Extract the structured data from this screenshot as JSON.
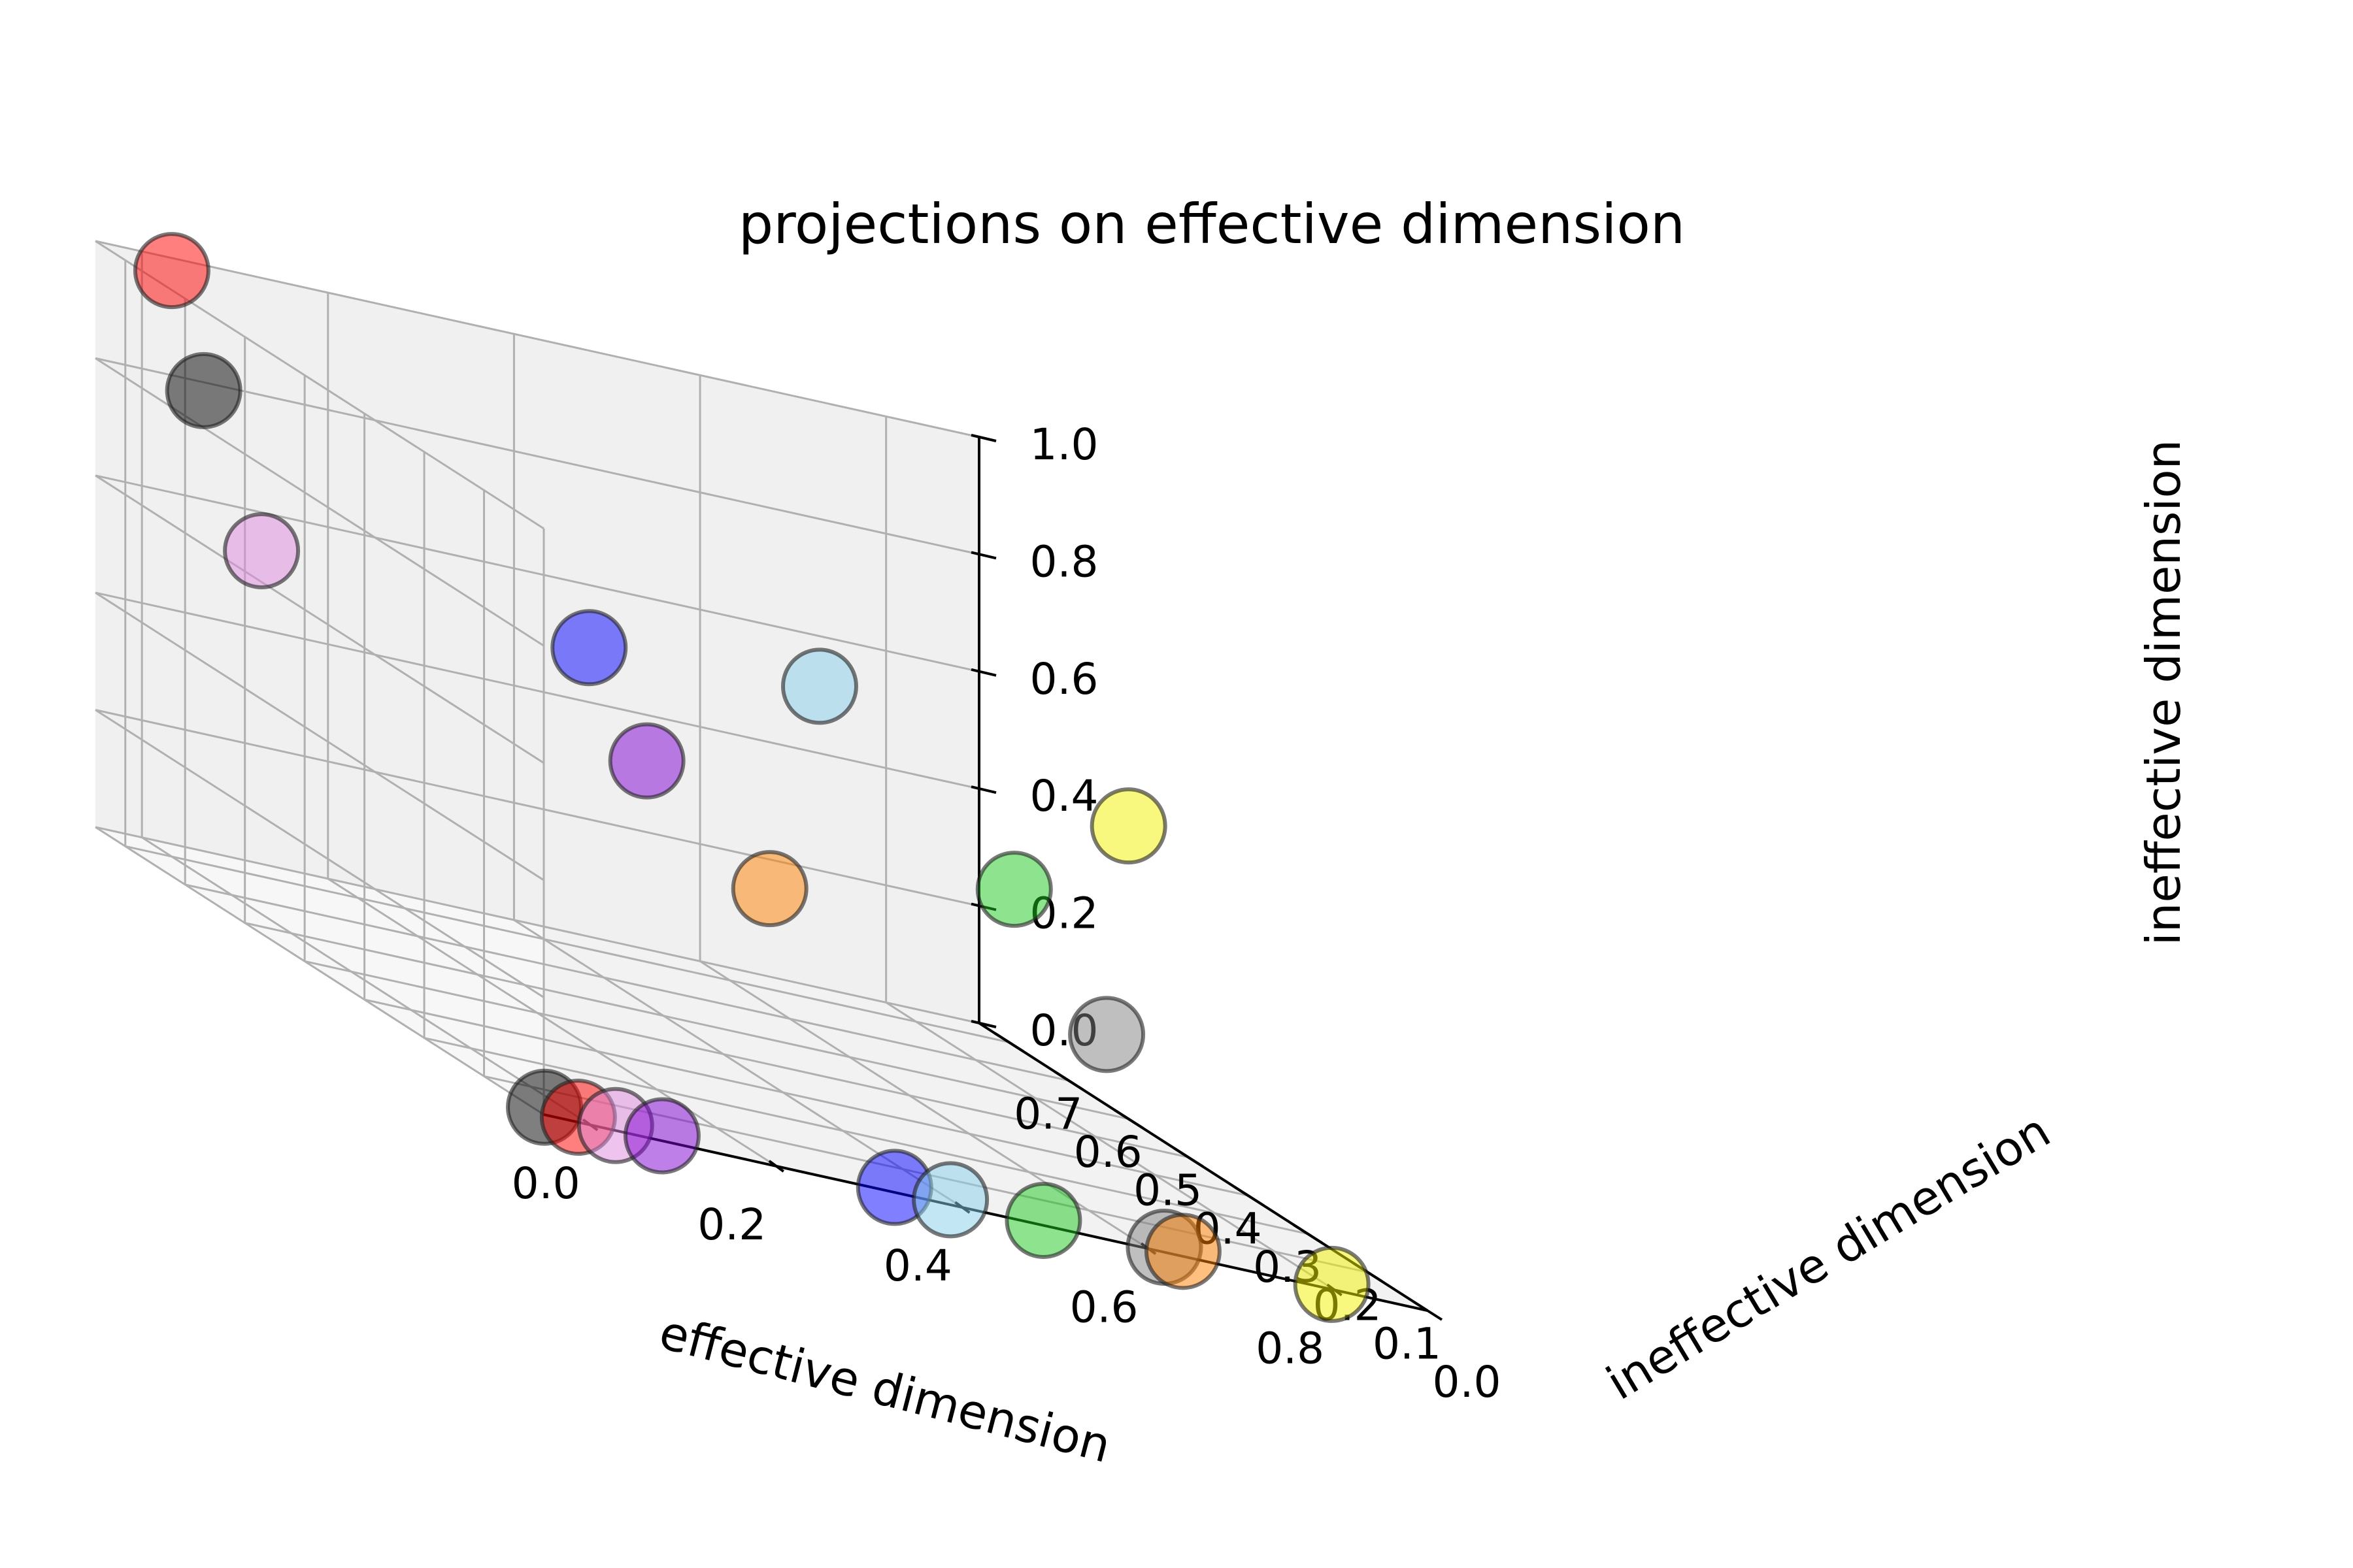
{
  "chart_data": {
    "type": "scatter",
    "projection": "3d",
    "title": "projections on effective dimension",
    "x_label": "effective dimension",
    "y_label": "ineffective dimension",
    "z_label": "ineffective dimension",
    "x_range": [
      -0.05,
      0.9
    ],
    "y_range": [
      0.0,
      0.75
    ],
    "z_range": [
      0.0,
      1.0
    ],
    "x_ticks": [
      "0.0",
      "0.2",
      "0.4",
      "0.6",
      "0.8"
    ],
    "y_ticks": [
      "0.0",
      "0.1",
      "0.2",
      "0.3",
      "0.4",
      "0.5",
      "0.6",
      "0.7"
    ],
    "z_ticks": [
      "0.0",
      "0.2",
      "0.4",
      "0.6",
      "0.8",
      "1.0"
    ],
    "grid": true,
    "marker_alpha": 0.5,
    "marker_edge_color": "#222222",
    "points": [
      {
        "color": "#ff0000",
        "x": 0.0,
        "y": 0.7,
        "z": 1.0
      },
      {
        "color": "#000000",
        "x": -0.03,
        "y": 0.6,
        "z": 0.85
      },
      {
        "color": "#dd88dd",
        "x": 0.0,
        "y": 0.55,
        "z": 0.62
      },
      {
        "color": "#0000ff",
        "x": 0.32,
        "y": 0.5,
        "z": 0.6
      },
      {
        "color": "#7f00d4",
        "x": 0.35,
        "y": 0.45,
        "z": 0.45
      },
      {
        "color": "#ff8000",
        "x": 0.45,
        "y": 0.4,
        "z": 0.3
      },
      {
        "color": "#87ceeb",
        "x": 0.6,
        "y": 0.55,
        "z": 0.6
      },
      {
        "color": "#1ec81e",
        "x": 0.7,
        "y": 0.38,
        "z": 0.4
      },
      {
        "color": "#808080",
        "x": 0.78,
        "y": 0.35,
        "z": 0.2
      },
      {
        "color": "#f2f200",
        "x": 0.9,
        "y": 0.5,
        "z": 0.5
      },
      {
        "color": "#000000",
        "x": -0.03,
        "y": 0.03,
        "z": 0.0
      },
      {
        "color": "#ff0000",
        "x": 0.0,
        "y": 0.02,
        "z": 0.0
      },
      {
        "color": "#dd88dd",
        "x": 0.04,
        "y": 0.02,
        "z": 0.0
      },
      {
        "color": "#7f00d4",
        "x": 0.09,
        "y": 0.02,
        "z": 0.0
      },
      {
        "color": "#0000ff",
        "x": 0.34,
        "y": 0.02,
        "z": 0.0
      },
      {
        "color": "#87ceeb",
        "x": 0.4,
        "y": 0.02,
        "z": 0.0
      },
      {
        "color": "#1ec81e",
        "x": 0.5,
        "y": 0.02,
        "z": 0.0
      },
      {
        "color": "#808080",
        "x": 0.63,
        "y": 0.02,
        "z": 0.0
      },
      {
        "color": "#ff8000",
        "x": 0.65,
        "y": 0.02,
        "z": 0.0
      },
      {
        "color": "#f2f200",
        "x": 0.81,
        "y": 0.02,
        "z": 0.0
      }
    ]
  }
}
